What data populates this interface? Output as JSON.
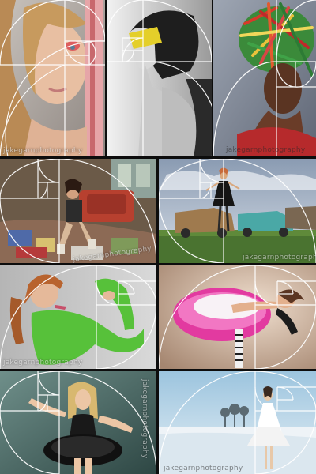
{
  "watermark": {
    "part1": "jakegarn",
    "part2": "photography"
  },
  "photos": [
    {
      "id": "t1",
      "label": "portrait-hair-over-eye"
    },
    {
      "id": "t2",
      "label": "portrait-yellow-mask-profile"
    },
    {
      "id": "t3",
      "label": "portrait-colorful-sticks-headdress"
    },
    {
      "id": "t4",
      "label": "woman-seated-in-cluttered-van"
    },
    {
      "id": "t5",
      "label": "woman-in-field-with-old-cars"
    },
    {
      "id": "t6",
      "label": "woman-green-sleeves-pose"
    },
    {
      "id": "t7",
      "label": "dancer-pink-tutu"
    },
    {
      "id": "t8",
      "label": "blonde-black-tutu"
    },
    {
      "id": "t9",
      "label": "woman-white-dress-snow-field"
    }
  ],
  "colors": {
    "overlay_line": "#ffffff",
    "background": "#0d0d0d"
  }
}
